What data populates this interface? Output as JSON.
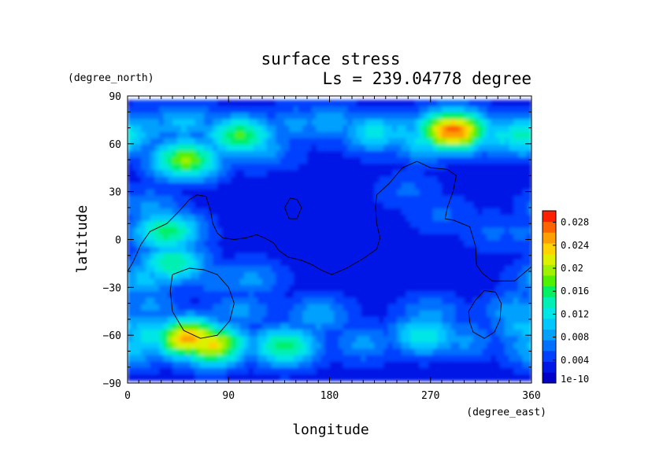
{
  "chart_data": {
    "type": "heatmap",
    "title": "surface stress",
    "subtitle": "Ls = 239.04778 degree",
    "xlabel": "longitude",
    "ylabel": "latitude",
    "xunit": "(degree_east)",
    "yunit": "(degree_north)",
    "xlim": [
      0,
      360
    ],
    "ylim": [
      -90,
      90
    ],
    "data_extent_lat": [
      -87.5,
      87.5
    ],
    "xticks": [
      {
        "value": 0,
        "label": "0"
      },
      {
        "value": 90,
        "label": "90"
      },
      {
        "value": 180,
        "label": "180"
      },
      {
        "value": 270,
        "label": "270"
      },
      {
        "value": 360,
        "label": "360"
      }
    ],
    "yticks": [
      {
        "value": 90,
        "label": "90"
      },
      {
        "value": 60,
        "label": "60"
      },
      {
        "value": 30,
        "label": "30"
      },
      {
        "value": 0,
        "label": "0"
      },
      {
        "value": -30,
        "label": "−30"
      },
      {
        "value": -60,
        "label": "−60"
      },
      {
        "value": -90,
        "label": "−90"
      }
    ],
    "colorbar": {
      "min": 0,
      "max": 0.03,
      "labels": [
        {
          "value": 0.0,
          "label": "1e-10"
        },
        {
          "value": 0.004,
          "label": "0.004"
        },
        {
          "value": 0.008,
          "label": "0.008"
        },
        {
          "value": 0.012,
          "label": "0.012"
        },
        {
          "value": 0.016,
          "label": "0.016"
        },
        {
          "value": 0.02,
          "label": "0.02"
        },
        {
          "value": 0.024,
          "label": "0.024"
        },
        {
          "value": 0.028,
          "label": "0.028"
        }
      ],
      "colors": [
        "#0000c8",
        "#0018e6",
        "#0040ff",
        "#0070ff",
        "#00a0ff",
        "#00c8ff",
        "#00e6e6",
        "#00f0b4",
        "#00f064",
        "#50f000",
        "#a0f000",
        "#dcf000",
        "#ffd200",
        "#ffa000",
        "#ff6400",
        "#ff2000"
      ]
    },
    "background_value": 0.0025,
    "blobs": [
      {
        "lon": 15,
        "lat": 70,
        "value": 0.009
      },
      {
        "lon": 50,
        "lat": 73,
        "value": 0.01
      },
      {
        "lon": 100,
        "lat": 65,
        "value": 0.017
      },
      {
        "lon": 115,
        "lat": 58,
        "value": 0.01
      },
      {
        "lon": 150,
        "lat": 72,
        "value": 0.008
      },
      {
        "lon": 180,
        "lat": 73,
        "value": 0.009
      },
      {
        "lon": 220,
        "lat": 67,
        "value": 0.012
      },
      {
        "lon": 245,
        "lat": 66,
        "value": 0.01
      },
      {
        "lon": 290,
        "lat": 68,
        "value": 0.027
      },
      {
        "lon": 265,
        "lat": 62,
        "value": 0.012
      },
      {
        "lon": 335,
        "lat": 65,
        "value": 0.012
      },
      {
        "lon": 352,
        "lat": 65,
        "value": 0.014
      },
      {
        "lon": 52,
        "lat": 50,
        "value": 0.019
      },
      {
        "lon": 130,
        "lat": 55,
        "value": 0.006
      },
      {
        "lon": 35,
        "lat": 5,
        "value": 0.016
      },
      {
        "lon": 40,
        "lat": -15,
        "value": 0.015
      },
      {
        "lon": 20,
        "lat": 20,
        "value": 0.008
      },
      {
        "lon": 15,
        "lat": -25,
        "value": 0.01
      },
      {
        "lon": 80,
        "lat": -25,
        "value": 0.007
      },
      {
        "lon": 110,
        "lat": -25,
        "value": 0.008
      },
      {
        "lon": 250,
        "lat": 30,
        "value": 0.006
      },
      {
        "lon": 280,
        "lat": 15,
        "value": 0.006
      },
      {
        "lon": 325,
        "lat": 5,
        "value": 0.006
      },
      {
        "lon": 350,
        "lat": 5,
        "value": 0.006
      },
      {
        "lon": 20,
        "lat": -42,
        "value": 0.008
      },
      {
        "lon": 100,
        "lat": -45,
        "value": 0.008
      },
      {
        "lon": 170,
        "lat": -48,
        "value": 0.009
      },
      {
        "lon": 270,
        "lat": -47,
        "value": 0.008
      },
      {
        "lon": 345,
        "lat": -45,
        "value": 0.009
      },
      {
        "lon": 265,
        "lat": -60,
        "value": 0.013
      },
      {
        "lon": 355,
        "lat": -55,
        "value": 0.01
      },
      {
        "lon": 55,
        "lat": -62,
        "value": 0.025
      },
      {
        "lon": 75,
        "lat": -66,
        "value": 0.023
      },
      {
        "lon": 20,
        "lat": -60,
        "value": 0.012
      },
      {
        "lon": 140,
        "lat": -67,
        "value": 0.016
      },
      {
        "lon": 210,
        "lat": -65,
        "value": 0.008
      },
      {
        "lon": 300,
        "lat": -63,
        "value": 0.008
      },
      {
        "lon": 5,
        "lat": -68,
        "value": 0.01
      }
    ],
    "topography_contours": [
      [
        [
          0,
          -20
        ],
        [
          5,
          -14
        ],
        [
          12,
          -3
        ],
        [
          20,
          5
        ],
        [
          35,
          10
        ],
        [
          45,
          17
        ],
        [
          55,
          25
        ],
        [
          62,
          28
        ],
        [
          70,
          27
        ],
        [
          74,
          18
        ],
        [
          76,
          10
        ],
        [
          80,
          4
        ],
        [
          85,
          1
        ],
        [
          95,
          0
        ],
        [
          105,
          1
        ],
        [
          115,
          3
        ],
        [
          122,
          1
        ],
        [
          130,
          -2
        ],
        [
          135,
          -7
        ],
        [
          143,
          -11
        ],
        [
          155,
          -13
        ],
        [
          165,
          -16
        ],
        [
          172,
          -19
        ],
        [
          182,
          -22
        ],
        [
          195,
          -18
        ],
        [
          210,
          -12
        ],
        [
          222,
          -6
        ],
        [
          225,
          1
        ],
        [
          222,
          10
        ],
        [
          221,
          20
        ],
        [
          222,
          28
        ],
        [
          233,
          35
        ],
        [
          245,
          45
        ],
        [
          258,
          49
        ],
        [
          270,
          45
        ],
        [
          285,
          44
        ],
        [
          293,
          40
        ],
        [
          290,
          30
        ],
        [
          285,
          20
        ],
        [
          283,
          13
        ],
        [
          291,
          12
        ],
        [
          305,
          8
        ],
        [
          310,
          -4
        ],
        [
          311,
          -16
        ],
        [
          316,
          -21
        ],
        [
          325,
          -26
        ],
        [
          345,
          -26
        ],
        [
          360,
          -17
        ]
      ],
      [
        [
          140,
          20
        ],
        [
          145,
          26
        ],
        [
          151,
          25
        ],
        [
          155,
          20
        ],
        [
          151,
          13
        ],
        [
          144,
          13
        ],
        [
          140,
          20
        ]
      ],
      [
        [
          40,
          -22
        ],
        [
          55,
          -18
        ],
        [
          68,
          -19
        ],
        [
          80,
          -22
        ],
        [
          90,
          -30
        ],
        [
          95,
          -40
        ],
        [
          91,
          -51
        ],
        [
          80,
          -60
        ],
        [
          65,
          -62
        ],
        [
          50,
          -57
        ],
        [
          40,
          -45
        ],
        [
          38,
          -32
        ],
        [
          40,
          -22
        ]
      ],
      [
        [
          305,
          -52
        ],
        [
          308,
          -58
        ],
        [
          318,
          -62
        ],
        [
          327,
          -58
        ],
        [
          332,
          -50
        ],
        [
          333,
          -40
        ],
        [
          328,
          -33
        ],
        [
          318,
          -32
        ],
        [
          310,
          -38
        ],
        [
          304,
          -45
        ],
        [
          305,
          -52
        ]
      ]
    ]
  }
}
